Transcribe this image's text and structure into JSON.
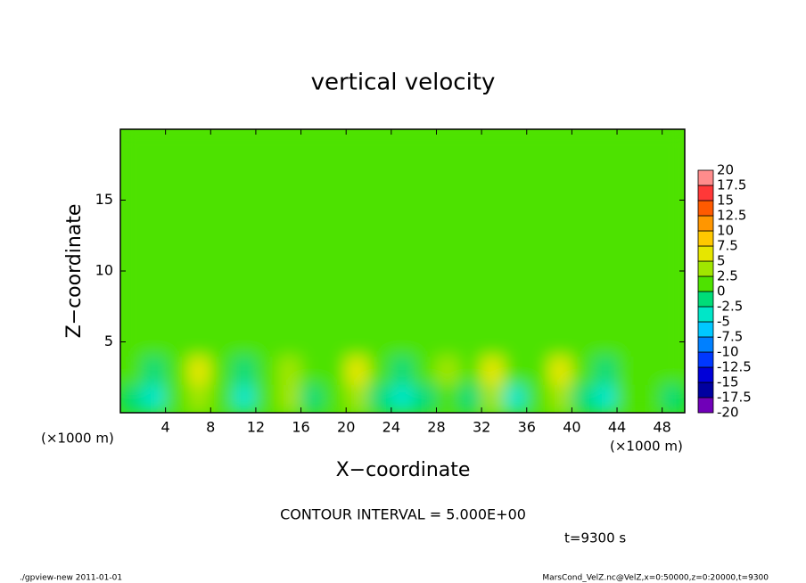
{
  "chart_data": {
    "type": "contour",
    "title": "vertical velocity",
    "xlabel": "X−coordinate",
    "ylabel": "Z−coordinate",
    "axis_unit": "(×1000 m)",
    "annotation": "CONTOUR INTERVAL = 5.000E+00",
    "time_label": "t=9300 s",
    "footer_left": "./gpview-new   2011-01-01",
    "footer_right": "MarsCond_VelZ.nc@VelZ,x=0:50000,z=0:20000,t=9300",
    "xlim": [
      0,
      50
    ],
    "xticks": [
      4,
      8,
      12,
      16,
      20,
      24,
      28,
      32,
      36,
      40,
      44,
      48
    ],
    "ylim": [
      0,
      20
    ],
    "yticks": [
      5,
      10,
      15
    ],
    "x": [
      1,
      3,
      5,
      7,
      9,
      11,
      13,
      15,
      17,
      19,
      21,
      23,
      25,
      27,
      29,
      31,
      33,
      35,
      37,
      39,
      41,
      43,
      45,
      47,
      49
    ],
    "z": [
      1,
      3,
      5,
      8,
      12,
      17
    ],
    "values": [
      [
        -1,
        -4,
        1,
        3,
        1,
        -3,
        0,
        3,
        -1,
        0,
        4,
        -2,
        -3,
        -1,
        2,
        -1,
        3,
        -3,
        0,
        4,
        -2,
        -3,
        0,
        1,
        -1
      ],
      [
        0,
        -1,
        1,
        6,
        2,
        -1,
        1,
        4,
        1,
        1,
        6,
        0,
        -1,
        0,
        3,
        1,
        5,
        0,
        2,
        5,
        0,
        -1,
        1,
        2,
        1
      ],
      [
        1,
        1,
        2,
        2,
        1,
        1,
        1,
        2,
        1,
        1,
        2,
        1,
        1,
        1,
        2,
        1,
        2,
        1,
        1,
        2,
        1,
        1,
        1,
        1,
        2
      ],
      [
        1,
        1,
        1,
        1,
        1,
        1,
        1,
        1,
        1,
        1,
        1,
        1,
        1,
        1,
        1,
        1,
        1,
        1,
        1,
        1,
        1,
        1,
        1,
        1,
        1
      ],
      [
        1,
        1,
        1,
        1,
        1,
        1,
        1,
        1,
        1,
        1,
        1,
        1,
        1,
        1,
        1,
        1,
        1,
        1,
        1,
        1,
        1,
        1,
        1,
        1,
        1
      ],
      [
        1,
        1,
        1,
        1,
        1,
        1,
        1,
        1,
        1,
        1,
        1,
        1,
        1,
        1,
        1,
        1,
        1,
        1,
        1,
        1,
        1,
        1,
        1,
        1,
        1
      ]
    ],
    "colorbar": {
      "levels": [
        -20,
        -17.5,
        -15,
        -12.5,
        -10,
        -7.5,
        -5,
        -2.5,
        0,
        2.5,
        5,
        7.5,
        10,
        12.5,
        15,
        17.5,
        20
      ],
      "colors": [
        "#7000b8",
        "#0000a0",
        "#0000d8",
        "#0038ff",
        "#0080ff",
        "#00c8ff",
        "#00e6c8",
        "#00dc78",
        "#4ee200",
        "#a0e600",
        "#e6e600",
        "#ffc800",
        "#ff9600",
        "#ff5a00",
        "#ff3838",
        "#ff8c8c"
      ]
    }
  }
}
